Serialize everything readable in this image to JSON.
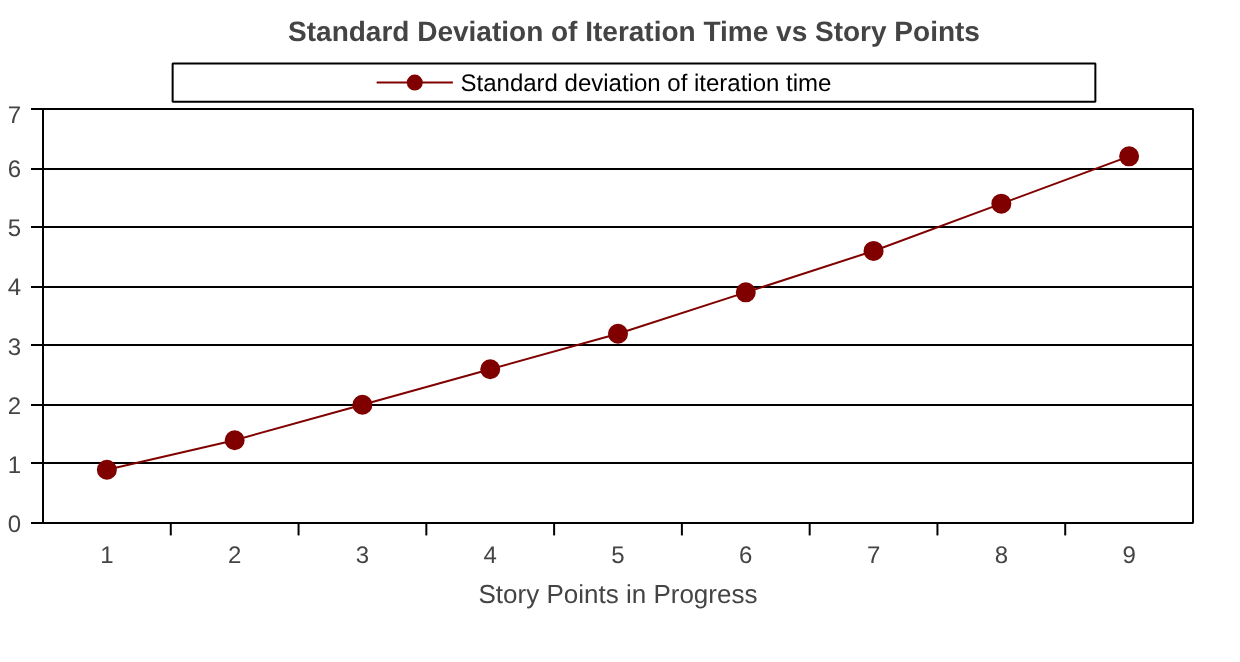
{
  "chart_data": {
    "type": "line",
    "title": "Standard Deviation of Iteration Time vs Story Points",
    "xlabel": "Story Points in Progress",
    "categories": [
      "1",
      "2",
      "3",
      "4",
      "5",
      "6",
      "7",
      "8",
      "9"
    ],
    "series": [
      {
        "name": "Standard deviation of iteration time",
        "color": "#800000",
        "values": [
          0.9,
          1.4,
          2.0,
          2.6,
          3.2,
          3.9,
          4.6,
          5.4,
          6.2
        ]
      }
    ],
    "ylim": [
      0,
      7
    ],
    "yticks": [
      0,
      1,
      2,
      3,
      4,
      5,
      6,
      7
    ],
    "grid": "y",
    "legend": "top",
    "marker": "circle",
    "line_style": "solid"
  }
}
